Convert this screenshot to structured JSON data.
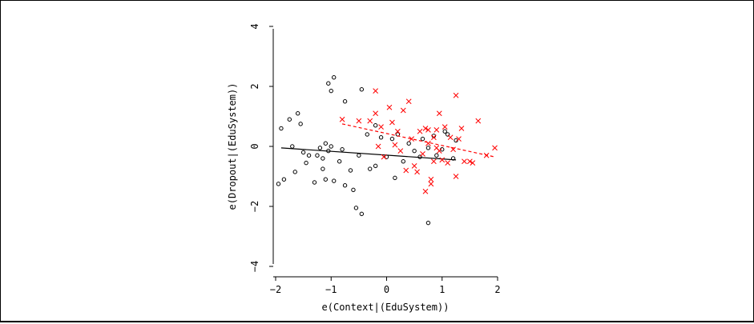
{
  "chart_data": {
    "type": "scatter",
    "xlabel": "e(Context|(EduSystem))",
    "ylabel": "e(Dropout|(EduSystem))",
    "xlim": [
      -2,
      2
    ],
    "ylim": [
      -4,
      4
    ],
    "x_ticks": [
      -2,
      -1,
      0,
      1,
      2
    ],
    "y_ticks": [
      -4,
      -2,
      0,
      2,
      4
    ],
    "x_tick_labels": [
      "−2",
      "−1",
      "0",
      "1",
      "2"
    ],
    "y_tick_labels": [
      "−4",
      "−2",
      "0",
      "2",
      "4"
    ],
    "grid": false,
    "series": [
      {
        "marker": "circle",
        "color": "#000000",
        "points": [
          [
            -1.95,
            -1.25
          ],
          [
            -1.9,
            0.6
          ],
          [
            -1.85,
            -1.1
          ],
          [
            -1.75,
            0.9
          ],
          [
            -1.7,
            0.0
          ],
          [
            -1.65,
            -0.85
          ],
          [
            -1.6,
            1.1
          ],
          [
            -1.55,
            0.75
          ],
          [
            -1.5,
            -0.2
          ],
          [
            -1.45,
            -0.55
          ],
          [
            -1.4,
            -0.3
          ],
          [
            -1.3,
            -1.2
          ],
          [
            -1.25,
            -0.3
          ],
          [
            -1.2,
            -0.05
          ],
          [
            -1.15,
            -0.75
          ],
          [
            -1.15,
            -0.4
          ],
          [
            -1.1,
            0.1
          ],
          [
            -1.1,
            -1.1
          ],
          [
            -1.05,
            2.1
          ],
          [
            -1.05,
            -0.15
          ],
          [
            -1.0,
            1.85
          ],
          [
            -1.0,
            0.0
          ],
          [
            -0.95,
            2.3
          ],
          [
            -0.95,
            -1.15
          ],
          [
            -0.85,
            -0.5
          ],
          [
            -0.8,
            -0.1
          ],
          [
            -0.75,
            1.5
          ],
          [
            -0.75,
            -1.3
          ],
          [
            -0.65,
            -0.8
          ],
          [
            -0.6,
            -1.45
          ],
          [
            -0.55,
            -2.05
          ],
          [
            -0.5,
            -0.3
          ],
          [
            -0.45,
            -2.25
          ],
          [
            -0.45,
            1.9
          ],
          [
            -0.35,
            0.4
          ],
          [
            -0.3,
            -0.75
          ],
          [
            -0.2,
            0.7
          ],
          [
            -0.2,
            -0.65
          ],
          [
            -0.1,
            0.3
          ],
          [
            0.0,
            -0.35
          ],
          [
            0.1,
            0.25
          ],
          [
            0.15,
            -1.05
          ],
          [
            0.2,
            0.4
          ],
          [
            0.3,
            -0.5
          ],
          [
            0.4,
            0.1
          ],
          [
            0.5,
            -0.15
          ],
          [
            0.6,
            -0.35
          ],
          [
            0.65,
            0.25
          ],
          [
            0.75,
            -0.05
          ],
          [
            0.75,
            -2.55
          ],
          [
            0.85,
            0.35
          ],
          [
            0.9,
            -0.3
          ],
          [
            1.0,
            -0.1
          ],
          [
            1.05,
            0.5
          ],
          [
            1.1,
            0.4
          ],
          [
            1.2,
            -0.4
          ],
          [
            1.25,
            0.2
          ]
        ],
        "fit": {
          "x": [
            -1.9,
            1.25
          ],
          "y": [
            -0.05,
            -0.45
          ],
          "style": "solid"
        }
      },
      {
        "marker": "x",
        "color": "#ff0000",
        "points": [
          [
            -0.8,
            0.9
          ],
          [
            -0.5,
            0.85
          ],
          [
            -0.3,
            0.85
          ],
          [
            -0.2,
            1.1
          ],
          [
            -0.2,
            1.85
          ],
          [
            -0.15,
            0.0
          ],
          [
            -0.1,
            0.65
          ],
          [
            -0.05,
            -0.35
          ],
          [
            0.05,
            1.3
          ],
          [
            0.1,
            0.8
          ],
          [
            0.15,
            0.05
          ],
          [
            0.2,
            0.5
          ],
          [
            0.25,
            -0.15
          ],
          [
            0.3,
            1.2
          ],
          [
            0.35,
            -0.8
          ],
          [
            0.4,
            1.5
          ],
          [
            0.45,
            0.25
          ],
          [
            0.5,
            -0.65
          ],
          [
            0.55,
            -0.85
          ],
          [
            0.6,
            0.5
          ],
          [
            0.65,
            -0.25
          ],
          [
            0.7,
            -1.5
          ],
          [
            0.7,
            0.6
          ],
          [
            0.75,
            0.1
          ],
          [
            0.75,
            0.55
          ],
          [
            0.8,
            -1.1
          ],
          [
            0.8,
            -1.25
          ],
          [
            0.85,
            0.3
          ],
          [
            0.85,
            -0.5
          ],
          [
            0.9,
            0.55
          ],
          [
            0.9,
            -0.05
          ],
          [
            0.95,
            1.1
          ],
          [
            0.95,
            -0.15
          ],
          [
            1.0,
            -0.45
          ],
          [
            1.05,
            0.65
          ],
          [
            1.1,
            -0.55
          ],
          [
            1.15,
            0.3
          ],
          [
            1.2,
            -0.1
          ],
          [
            1.25,
            1.7
          ],
          [
            1.25,
            -1.0
          ],
          [
            1.3,
            0.25
          ],
          [
            1.35,
            0.6
          ],
          [
            1.4,
            -0.5
          ],
          [
            1.5,
            -0.5
          ],
          [
            1.55,
            -0.55
          ],
          [
            1.65,
            0.85
          ],
          [
            1.8,
            -0.3
          ],
          [
            1.95,
            -0.05
          ]
        ],
        "fit": {
          "x": [
            -0.8,
            1.95
          ],
          "y": [
            0.75,
            -0.35
          ],
          "style": "dashed"
        }
      }
    ]
  }
}
